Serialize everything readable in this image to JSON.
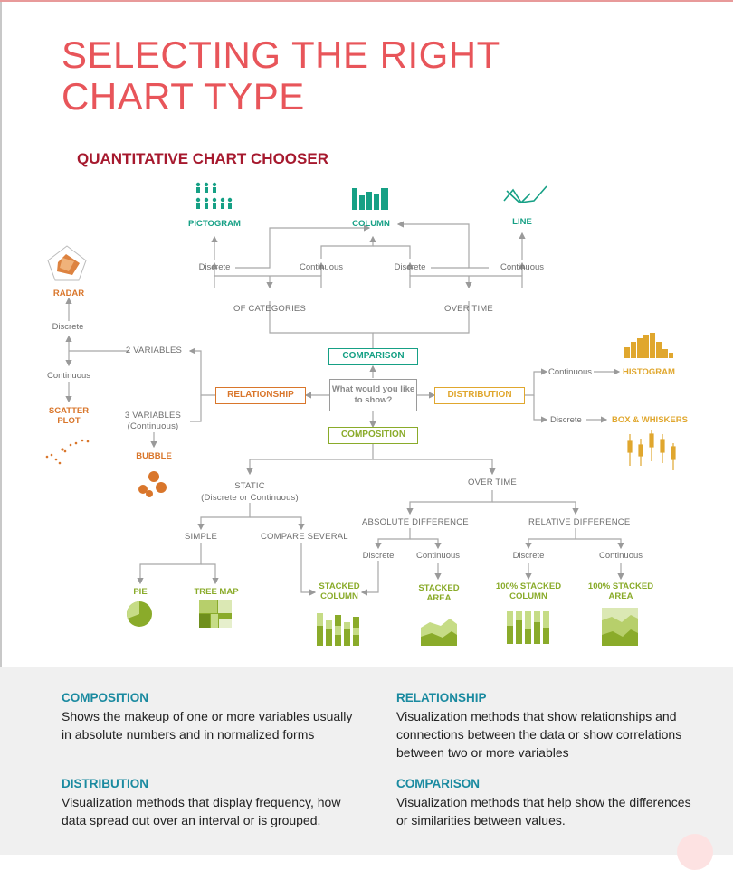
{
  "title_line1": "SELECTING THE RIGHT",
  "title_line2": "CHART TYPE",
  "subtitle": "QUANTITATIVE CHART CHOOSER",
  "center_question": "What would you like to show?",
  "categories": {
    "comparison": "COMPARISON",
    "relationship": "RELATIONSHIP",
    "distribution": "DISTRIBUTION",
    "composition": "COMPOSITION"
  },
  "labels": {
    "of_categories": "OF CATEGORIES",
    "over_time_top": "OVER TIME",
    "discrete_1": "Discrete",
    "continuous_1": "Continuous",
    "discrete_2": "Discrete",
    "continuous_2": "Continuous",
    "two_variables": "2 VARIABLES",
    "three_variables_1": "3 VARIABLES",
    "three_variables_2": "(Continuous)",
    "rel_discrete": "Discrete",
    "rel_continuous": "Continuous",
    "dist_continuous": "Continuous",
    "dist_discrete": "Discrete",
    "static": "STATIC",
    "static_sub": "(Discrete or Continuous)",
    "over_time_bottom": "OVER TIME",
    "simple": "SIMPLE",
    "compare_several": "COMPARE SEVERAL",
    "absolute_difference": "ABSOLUTE DIFFERENCE",
    "relative_difference": "RELATIVE DIFFERENCE",
    "abs_discrete": "Discrete",
    "abs_continuous": "Continuous",
    "rel2_discrete": "Discrete",
    "rel2_continuous": "Continuous"
  },
  "charts": {
    "pictogram": "PICTOGRAM",
    "column": "COLUMN",
    "line": "LINE",
    "radar": "RADAR",
    "scatter_1": "SCATTER",
    "scatter_2": "PLOT",
    "bubble": "BUBBLE",
    "histogram": "HISTOGRAM",
    "box_whiskers": "BOX & WHISKERS",
    "pie": "PIE",
    "tree_map": "TREE MAP",
    "stacked_column_1": "STACKED",
    "stacked_column_2": "COLUMN",
    "stacked_area_1": "STACKED",
    "stacked_area_2": "AREA",
    "stacked100_column_1": "100% STACKED",
    "stacked100_column_2": "COLUMN",
    "stacked100_area_1": "100% STACKED",
    "stacked100_area_2": "AREA"
  },
  "definitions": [
    {
      "term": "COMPOSITION",
      "text": "Shows the makeup of one or more variables usually in absolute numbers and in normalized forms"
    },
    {
      "term": "RELATIONSHIP",
      "text": "Visualization methods that show relationships and connections between the data or show correlations between two or more variables"
    },
    {
      "term": "DISTRIBUTION",
      "text": "Visualization methods that display frequency, how data spread out over an interval or is grouped."
    },
    {
      "term": "COMPARISON",
      "text": "Visualization methods that help show the differences or similarities between values."
    }
  ],
  "colors": {
    "title": "#e8555a",
    "subtitle": "#a6192e",
    "comparison": "#16a085",
    "relationship": "#d9762b",
    "distribution": "#e0a72e",
    "composition": "#8aab2a",
    "definition_term": "#1a8aa0"
  }
}
